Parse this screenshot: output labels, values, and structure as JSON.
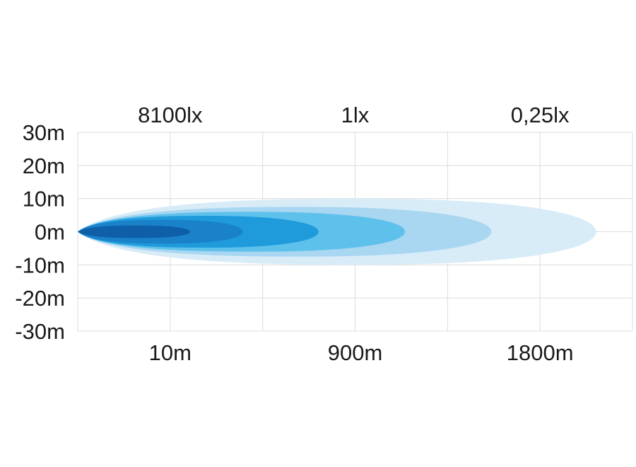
{
  "chart_data": {
    "type": "area",
    "title": "",
    "xlabel": "",
    "ylabel": "",
    "y_ticks": [
      "30m",
      "20m",
      "10m",
      "0m",
      "-10m",
      "-20m",
      "-30m"
    ],
    "x_ticks": [
      "10m",
      "900m",
      "1800m"
    ],
    "lux_labels": [
      "8100lx",
      "1lx",
      "0,25lx"
    ],
    "ylim": [
      -30,
      30
    ],
    "grid": true,
    "beams": [
      {
        "reach": 0.99,
        "half_width": 10.0,
        "color": "#d8ecf8"
      },
      {
        "reach": 0.79,
        "half_width": 7.5,
        "color": "#a9d6f1"
      },
      {
        "reach": 0.625,
        "half_width": 6.0,
        "color": "#5ec1ec"
      },
      {
        "reach": 0.46,
        "half_width": 4.8,
        "color": "#1f9bdc"
      },
      {
        "reach": 0.315,
        "half_width": 3.6,
        "color": "#1a82c9"
      },
      {
        "reach": 0.215,
        "half_width": 1.9,
        "color": "#0f5fa8"
      }
    ]
  }
}
